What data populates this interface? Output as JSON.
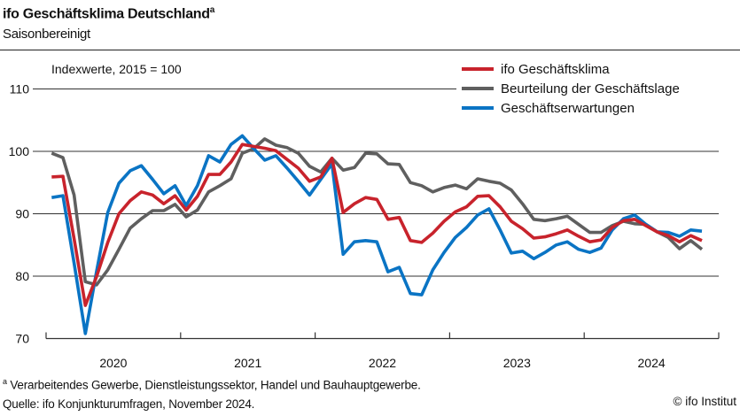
{
  "header": {
    "title": "ifo Geschäftsklima Deutschland",
    "title_sup": "a",
    "subtitle": "Saisonbereinigt"
  },
  "chart_data": {
    "type": "line",
    "unit_label": "Indexwerte, 2015 = 100",
    "x_start": "2020-01",
    "x_end": "2024-11",
    "x_frequency": "monthly",
    "x_tick_labels": [
      "2020",
      "2021",
      "2022",
      "2023",
      "2024"
    ],
    "y_ticks": [
      70,
      80,
      90,
      100,
      110
    ],
    "ylim": [
      70,
      110
    ],
    "grid": "horizontal",
    "legend_placement": "top-right",
    "series": [
      {
        "name": "ifo Geschäftsklima",
        "color": "#c8232c",
        "values": [
          95.9,
          96.0,
          86.0,
          75.3,
          79.9,
          85.4,
          90.0,
          92.1,
          93.5,
          93.0,
          91.6,
          92.9,
          90.6,
          92.8,
          96.3,
          96.3,
          98.3,
          101.1,
          100.8,
          100.5,
          100.1,
          98.7,
          97.3,
          95.2,
          95.9,
          98.9,
          90.2,
          91.6,
          92.6,
          92.3,
          89.1,
          89.4,
          85.7,
          85.4,
          86.9,
          88.8,
          90.3,
          91.1,
          92.8,
          92.9,
          91.1,
          88.8,
          87.6,
          86.1,
          86.3,
          86.8,
          87.4,
          86.4,
          85.5,
          85.8,
          87.8,
          88.9,
          89.1,
          88.1,
          87.1,
          86.5,
          85.5,
          86.5,
          85.7
        ]
      },
      {
        "name": "Beurteilung der Geschäftslage",
        "color": "#5f5f5f",
        "values": [
          99.7,
          99.0,
          93.0,
          79.1,
          78.6,
          81.0,
          84.3,
          87.7,
          89.2,
          90.5,
          90.5,
          91.5,
          89.5,
          90.6,
          93.5,
          94.5,
          95.6,
          99.7,
          100.4,
          102.0,
          101.0,
          100.6,
          99.7,
          97.6,
          96.7,
          98.9,
          97.0,
          97.4,
          99.7,
          99.6,
          98.0,
          97.9,
          95.0,
          94.5,
          93.5,
          94.2,
          94.6,
          94.0,
          95.6,
          95.2,
          94.9,
          93.8,
          91.6,
          89.1,
          88.9,
          89.2,
          89.6,
          88.3,
          87.0,
          87.0,
          88.1,
          88.8,
          88.4,
          88.3,
          87.1,
          86.2,
          84.4,
          85.7,
          84.3
        ]
      },
      {
        "name": "Geschäftserwartungen",
        "color": "#0a74c4",
        "values": [
          92.6,
          92.9,
          82.1,
          70.8,
          80.7,
          90.2,
          94.9,
          96.9,
          97.7,
          95.5,
          93.2,
          94.5,
          91.3,
          94.5,
          99.3,
          98.3,
          101.1,
          102.5,
          100.5,
          98.6,
          99.3,
          97.3,
          95.2,
          93.0,
          95.5,
          98.0,
          83.5,
          85.5,
          85.7,
          85.5,
          80.7,
          81.4,
          77.2,
          77.0,
          81.0,
          83.8,
          86.2,
          87.8,
          89.8,
          90.8,
          87.4,
          83.7,
          84.0,
          82.8,
          83.8,
          85.0,
          85.5,
          84.3,
          83.8,
          84.5,
          87.4,
          89.2,
          89.8,
          88.3,
          87.1,
          87.0,
          86.4,
          87.4,
          87.2
        ]
      }
    ]
  },
  "footer": {
    "footnote_marker": "a",
    "footnote": "Verarbeitendes Gewerbe, Dienstleistungssektor, Handel und Bauhauptgewerbe.",
    "source": "Quelle: ifo Konjunkturumfragen, November 2024.",
    "copyright": "© ifo Institut"
  }
}
